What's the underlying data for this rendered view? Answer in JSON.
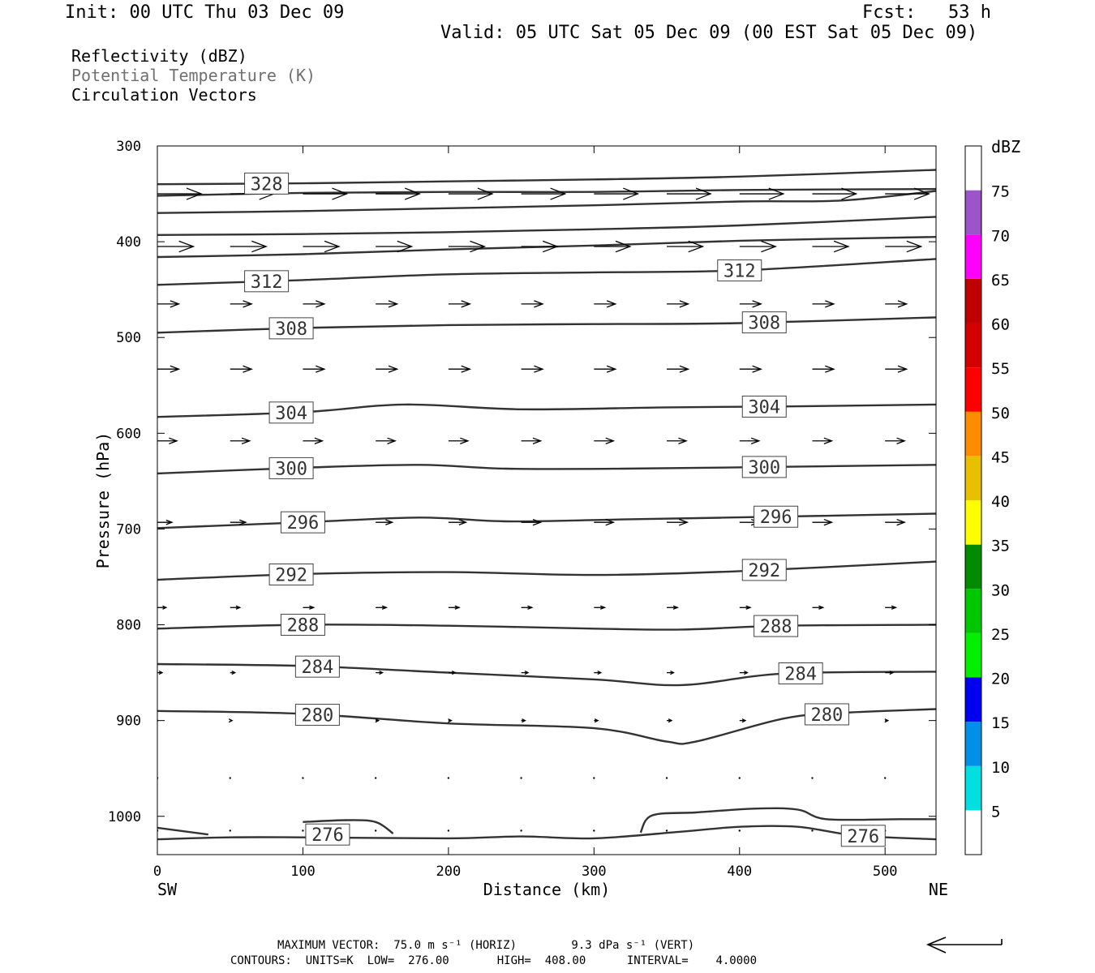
{
  "header": {
    "init": "Init: 00 UTC Thu 03 Dec 09",
    "fcst": "Fcst:   53 h",
    "valid": "Valid: 05 UTC Sat 05 Dec 09 (00 EST Sat 05 Dec 09)"
  },
  "fields": {
    "reflectivity": "Reflectivity (dBZ)",
    "theta": "Potential Temperature (K)",
    "vectors": "Circulation Vectors"
  },
  "footer": {
    "line1": "MAXIMUM VECTOR:  75.0 m s⁻¹ (HORIZ)        9.3 dPa s⁻¹ (VERT)",
    "line2": "CONTOURS:  UNITS=K  LOW=  276.00       HIGH=  408.00      INTERVAL=    4.0000"
  },
  "colors": {
    "contour": "#333333",
    "vector": "#000000",
    "dbz_scale": [
      "#ffffff",
      "#00e0e0",
      "#0090e8",
      "#0000f0",
      "#00f000",
      "#00c800",
      "#008a00",
      "#ffff00",
      "#e8c000",
      "#ff8c00",
      "#ff0000",
      "#d40000",
      "#c00000",
      "#ff00ff",
      "#9c55c8",
      "#ffffff"
    ]
  },
  "chart_data": {
    "type": "cross-section",
    "xlabel": "Distance (km)",
    "ylabel": "Pressure (hPa)",
    "xlim": [
      0,
      535
    ],
    "ylim": [
      300,
      1040
    ],
    "y_scale": "linear, inverted",
    "x_ticks": [
      0,
      100,
      200,
      300,
      400,
      500
    ],
    "y_ticks": [
      300,
      400,
      500,
      600,
      700,
      800,
      900,
      1000
    ],
    "x_end_labels": {
      "left": "SW",
      "right": "NE"
    },
    "colorbar": {
      "title": "dBZ",
      "tick_labels": [
        "5",
        "10",
        "15",
        "20",
        "25",
        "30",
        "35",
        "40",
        "45",
        "50",
        "55",
        "60",
        "65",
        "70",
        "75"
      ],
      "levels": [
        0,
        5,
        10,
        15,
        20,
        25,
        30,
        35,
        40,
        45,
        50,
        55,
        60,
        65,
        70,
        75,
        80
      ]
    },
    "theta_contours": [
      {
        "value": 328,
        "labels_at": [
          75
        ],
        "points": [
          [
            0,
            340
          ],
          [
            100,
            339
          ],
          [
            200,
            337
          ],
          [
            300,
            335
          ],
          [
            400,
            332
          ],
          [
            535,
            325
          ]
        ]
      },
      {
        "value": 324,
        "labels_at": [],
        "points": [
          [
            0,
            352
          ],
          [
            100,
            349
          ],
          [
            200,
            348
          ],
          [
            300,
            348
          ],
          [
            400,
            346
          ],
          [
            535,
            345
          ]
        ]
      },
      {
        "value": 320,
        "labels_at": [],
        "points": [
          [
            0,
            370
          ],
          [
            100,
            368
          ],
          [
            200,
            365
          ],
          [
            300,
            362
          ],
          [
            400,
            358
          ],
          [
            470,
            357
          ],
          [
            535,
            347
          ]
        ]
      },
      {
        "value": 316,
        "labels_at": [],
        "points": [
          [
            0,
            393
          ],
          [
            100,
            392
          ],
          [
            200,
            390
          ],
          [
            300,
            387
          ],
          [
            400,
            383
          ],
          [
            535,
            374
          ]
        ]
      },
      {
        "value": 316,
        "labels_at": [],
        "points": [
          [
            0,
            416
          ],
          [
            100,
            413
          ],
          [
            200,
            408
          ],
          [
            300,
            404
          ],
          [
            400,
            399
          ],
          [
            535,
            395
          ]
        ]
      },
      {
        "value": 312,
        "labels_at": [
          75,
          400
        ],
        "points": [
          [
            0,
            445
          ],
          [
            100,
            440
          ],
          [
            200,
            434
          ],
          [
            300,
            432
          ],
          [
            400,
            430
          ],
          [
            535,
            418
          ]
        ]
      },
      {
        "value": 308,
        "labels_at": [
          92,
          417
        ],
        "points": [
          [
            0,
            495
          ],
          [
            100,
            490
          ],
          [
            200,
            487
          ],
          [
            300,
            486
          ],
          [
            400,
            485
          ],
          [
            535,
            479
          ]
        ]
      },
      {
        "value": 304,
        "labels_at": [
          92,
          417
        ],
        "points": [
          [
            0,
            583
          ],
          [
            100,
            578
          ],
          [
            170,
            570
          ],
          [
            250,
            575
          ],
          [
            350,
            573
          ],
          [
            430,
            572
          ],
          [
            535,
            570
          ]
        ]
      },
      {
        "value": 300,
        "labels_at": [
          92,
          417
        ],
        "points": [
          [
            0,
            642
          ],
          [
            100,
            636
          ],
          [
            180,
            633
          ],
          [
            240,
            637
          ],
          [
            320,
            637
          ],
          [
            430,
            635
          ],
          [
            535,
            633
          ]
        ]
      },
      {
        "value": 296,
        "labels_at": [
          100,
          425
        ],
        "points": [
          [
            0,
            699
          ],
          [
            100,
            693
          ],
          [
            180,
            688
          ],
          [
            240,
            692
          ],
          [
            320,
            690
          ],
          [
            430,
            687
          ],
          [
            535,
            684
          ]
        ]
      },
      {
        "value": 292,
        "labels_at": [
          92,
          417
        ],
        "points": [
          [
            0,
            753
          ],
          [
            100,
            747
          ],
          [
            200,
            745
          ],
          [
            300,
            748
          ],
          [
            400,
            744
          ],
          [
            535,
            734
          ]
        ]
      },
      {
        "value": 288,
        "labels_at": [
          100,
          425
        ],
        "points": [
          [
            0,
            804
          ],
          [
            100,
            800
          ],
          [
            200,
            801
          ],
          [
            300,
            804
          ],
          [
            360,
            805
          ],
          [
            430,
            801
          ],
          [
            535,
            800
          ]
        ]
      },
      {
        "value": 284,
        "labels_at": [
          110,
          442
        ],
        "points": [
          [
            0,
            841
          ],
          [
            100,
            843
          ],
          [
            200,
            850
          ],
          [
            300,
            857
          ],
          [
            360,
            863
          ],
          [
            430,
            851
          ],
          [
            535,
            849
          ]
        ]
      },
      {
        "value": 280,
        "labels_at": [
          110,
          460
        ],
        "points": [
          [
            0,
            890
          ],
          [
            100,
            893
          ],
          [
            200,
            903
          ],
          [
            300,
            908
          ],
          [
            350,
            922
          ],
          [
            370,
            922
          ],
          [
            430,
            898
          ],
          [
            470,
            892
          ],
          [
            535,
            888
          ]
        ]
      },
      {
        "value": 276,
        "labels_at": [
          117
        ],
        "points": [
          [
            0,
            1012
          ],
          [
            35,
            1019
          ]
        ]
      },
      {
        "value": 276,
        "labels_at": [],
        "points": [
          [
            100,
            1006
          ],
          [
            130,
            1004
          ],
          [
            150,
            1006
          ],
          [
            162,
            1018
          ]
        ]
      },
      {
        "value": 276,
        "labels_at": [],
        "points": [
          [
            332,
            1017
          ],
          [
            340,
            999
          ],
          [
            370,
            996
          ],
          [
            410,
            992
          ],
          [
            440,
            993
          ],
          [
            460,
            1003
          ],
          [
            510,
            1003
          ],
          [
            535,
            1003
          ]
        ]
      },
      {
        "value": 276,
        "labels_at": [
          485
        ],
        "points": [
          [
            0,
            1024
          ],
          [
            50,
            1022
          ],
          [
            100,
            1022
          ],
          [
            200,
            1023
          ],
          [
            250,
            1021
          ],
          [
            300,
            1023
          ],
          [
            360,
            1016
          ],
          [
            400,
            1011
          ],
          [
            440,
            1011
          ],
          [
            480,
            1020
          ],
          [
            535,
            1024
          ]
        ]
      }
    ],
    "wind_vectors": {
      "columns_km": [
        0,
        50,
        100,
        150,
        200,
        250,
        300,
        350,
        400,
        450,
        500
      ],
      "rows": [
        {
          "p": 350,
          "u": [
            45,
            45,
            45,
            45,
            45,
            45,
            45,
            45,
            45,
            45,
            45
          ],
          "w": [
            0,
            0,
            0,
            0,
            0,
            0,
            0,
            0,
            0,
            0,
            0
          ]
        },
        {
          "p": 405,
          "u": [
            37,
            37,
            37,
            37,
            37,
            37,
            37,
            37,
            37,
            37,
            37
          ],
          "w": [
            0,
            0,
            0,
            0,
            0,
            0,
            0,
            0,
            0,
            0,
            0
          ]
        },
        {
          "p": 465,
          "u": [
            22,
            22,
            22,
            22,
            22,
            22,
            22,
            22,
            22,
            22,
            22
          ],
          "w": [
            0,
            0,
            0,
            0,
            0,
            0,
            0,
            0,
            0,
            0,
            0
          ]
        },
        {
          "p": 533,
          "u": [
            22,
            22,
            22,
            22,
            22,
            22,
            22,
            22,
            22,
            22,
            22
          ],
          "w": [
            0,
            0,
            0,
            0,
            0,
            0,
            0,
            0,
            0,
            0,
            0
          ]
        },
        {
          "p": 608,
          "u": [
            20,
            20,
            20,
            20,
            20,
            20,
            20,
            20,
            20,
            20,
            20
          ],
          "w": [
            0,
            0,
            0,
            0,
            0,
            0,
            0,
            0,
            0,
            0,
            0
          ]
        },
        {
          "p": 693,
          "u": [
            15,
            16,
            17,
            17,
            18,
            20,
            20,
            21,
            20,
            20,
            20
          ],
          "w": [
            0,
            0,
            0,
            0,
            0,
            0,
            0,
            0,
            0,
            0,
            0
          ]
        },
        {
          "p": 782,
          "u": [
            9,
            10,
            11,
            11,
            11,
            11,
            11,
            11,
            11,
            11,
            11
          ],
          "w": [
            0,
            0,
            0,
            0,
            0,
            0,
            0,
            0,
            0,
            0,
            0
          ]
        },
        {
          "p": 850,
          "u": [
            5,
            5,
            5,
            7,
            7,
            7,
            7,
            7,
            8,
            8,
            8
          ],
          "w": [
            0,
            0,
            0,
            0,
            0,
            0,
            0,
            0,
            0,
            0,
            0
          ]
        },
        {
          "p": 900,
          "u": [
            0,
            2,
            2,
            3,
            3,
            4,
            4,
            5,
            6,
            0,
            3
          ],
          "w": [
            0,
            0,
            0,
            0,
            0,
            0,
            0,
            0,
            0,
            0,
            0
          ]
        },
        {
          "p": 960,
          "u": [
            0,
            0,
            0,
            0,
            0,
            0,
            0,
            0,
            0,
            0,
            0
          ],
          "w": [
            0,
            0,
            0,
            0,
            0,
            0,
            0,
            0,
            0,
            0,
            0
          ]
        },
        {
          "p": 1015,
          "u": [
            0,
            0,
            0,
            0,
            0,
            0,
            0,
            0,
            0,
            0,
            0
          ],
          "w": [
            0,
            0,
            0,
            0,
            0,
            0,
            0,
            0,
            0,
            0,
            0
          ]
        }
      ]
    }
  }
}
